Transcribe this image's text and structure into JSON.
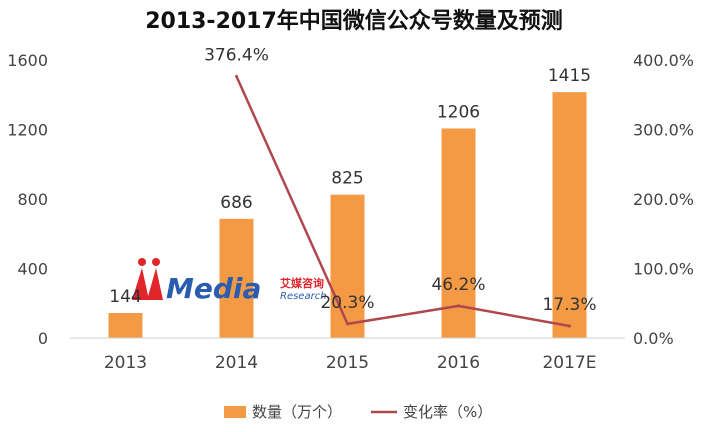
{
  "chart_data": {
    "type": "bar+line",
    "title": "2013-2017年中国微信公众号数量及预测",
    "categories": [
      "2013",
      "2014",
      "2015",
      "2016",
      "2017E"
    ],
    "series": [
      {
        "name": "数量（万个）",
        "type": "bar",
        "axis": "left",
        "values": [
          144,
          686,
          825,
          1206,
          1415
        ],
        "labels": [
          "144",
          "686",
          "825",
          "1206",
          "1415"
        ],
        "color": "#f59a44"
      },
      {
        "name": "变化率（%）",
        "type": "line",
        "axis": "right",
        "values": [
          null,
          376.4,
          20.3,
          46.2,
          17.3
        ],
        "labels": [
          "",
          "376.4%",
          "20.3%",
          "46.2%",
          "17.3%"
        ],
        "color": "#b0474d"
      }
    ],
    "y_left": {
      "ylim": [
        0,
        1600
      ],
      "ticks": [
        "0",
        "400",
        "800",
        "1200",
        "1600"
      ]
    },
    "y_right": {
      "ylim": [
        0,
        400
      ],
      "ticks": [
        "0.0%",
        "100.0%",
        "200.0%",
        "300.0%",
        "400.0%"
      ]
    },
    "grid": false,
    "legend": "bottom-center"
  },
  "watermark": {
    "logo_text": "iiMedia",
    "brand_cn": "艾媒咨询",
    "brand_en": "Research"
  }
}
